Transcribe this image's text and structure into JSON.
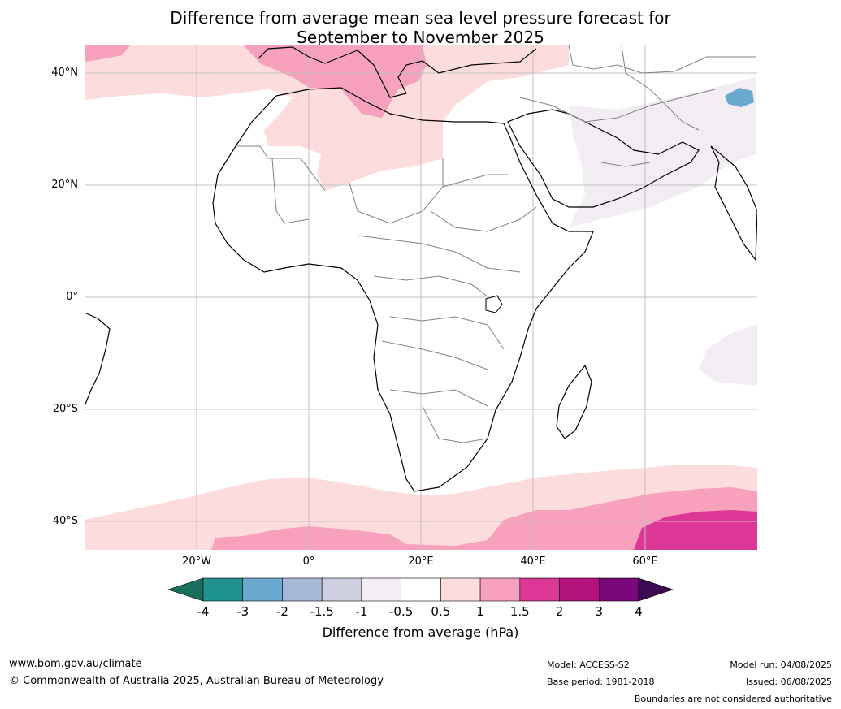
{
  "title": {
    "line1": "Difference from average mean sea level pressure forecast for",
    "line2": "September to November 2025"
  },
  "map": {
    "lat_labels": [
      "40°N",
      "20°N",
      "0°",
      "20°S",
      "40°S"
    ],
    "lon_labels": [
      "20°W",
      "0°",
      "20°E",
      "40°E",
      "60°E"
    ],
    "colors": {
      "ocean": "#ffffff",
      "band_0_5_1": "#fcdcdc",
      "band_1_1_5": "#f7a1bc",
      "band_1_5_2": "#dc3796",
      "band_m0_5_m1": "#f2edf3",
      "band_m2_m3": "#6aa9d0",
      "coast": "#000000",
      "border": "#808080",
      "grid": "#c0c0c0"
    }
  },
  "colorbar": {
    "ticks": [
      "-4",
      "-3",
      "-2",
      "-1.5",
      "-1",
      "-0.5",
      "0.5",
      "1",
      "1.5",
      "2",
      "3",
      "4"
    ],
    "colors": [
      "#1a6e5e",
      "#1f918f",
      "#6aa9d0",
      "#a6b8d8",
      "#cfcfe2",
      "#f2edf3",
      "#ffffff",
      "#fcdcdc",
      "#f7a1bc",
      "#dc3796",
      "#b4127c",
      "#7a0878",
      "#3b0a52"
    ],
    "label": "Difference from average (hPa)"
  },
  "footer": {
    "url": "www.bom.gov.au/climate",
    "copyright": "© Commonwealth of Australia 2025, Australian Bureau of Meteorology",
    "model": "Model: ACCESS-S2",
    "base_period": "Base period: 1981-2018",
    "model_run": "Model run: 04/08/2025",
    "issued": "Issued: 06/08/2025",
    "disclaimer": "Boundaries are not considered authoritative"
  }
}
